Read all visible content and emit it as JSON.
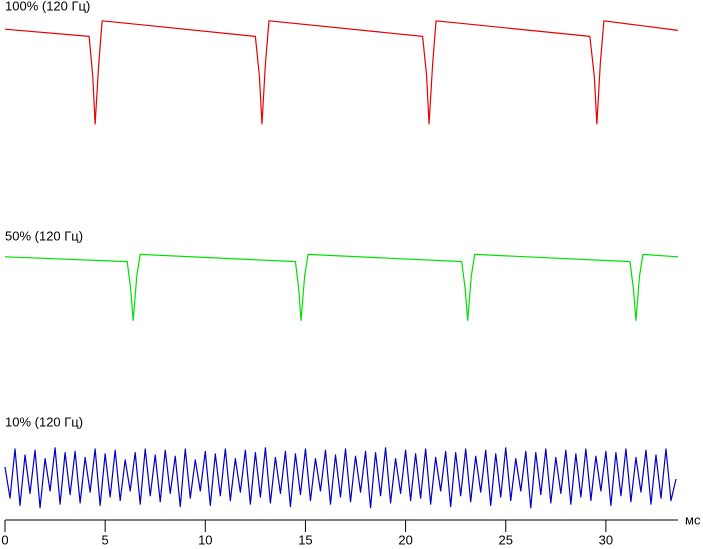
{
  "chart_data": {
    "type": "line",
    "x_label": "мс",
    "xlim": [
      0,
      33.6
    ],
    "xticks": [
      0,
      5,
      10,
      15,
      20,
      25,
      30
    ],
    "ylim": [
      0,
      100
    ],
    "series": [
      {
        "name": "100% (120 Гц)",
        "color": "#e60000",
        "x": [
          0,
          4.2,
          4.38,
          4.5,
          4.68,
          4.85,
          12.5,
          12.7,
          12.83,
          13.0,
          13.18,
          20.85,
          21.05,
          21.17,
          21.35,
          21.52,
          29.2,
          29.42,
          29.55,
          29.72,
          29.9,
          33.6
        ],
        "values": [
          84,
          78,
          45,
          5,
          55,
          91,
          78,
          45,
          5,
          55,
          91,
          78,
          45,
          5,
          55,
          91,
          78,
          45,
          5,
          55,
          91,
          83
        ]
      },
      {
        "name": "50% (120 Гц)",
        "color": "#00e000",
        "x": [
          0,
          6.1,
          6.27,
          6.4,
          6.58,
          6.75,
          14.5,
          14.66,
          14.78,
          14.96,
          15.13,
          22.8,
          22.97,
          23.1,
          23.28,
          23.45,
          31.2,
          31.37,
          31.5,
          31.68,
          31.85,
          33.6
        ],
        "values": [
          61,
          57,
          35,
          8,
          45,
          63,
          57,
          35,
          8,
          45,
          63,
          57,
          35,
          8,
          45,
          63,
          57,
          35,
          8,
          45,
          63,
          61
        ]
      },
      {
        "name": "10% (120 Гц)",
        "color": "#0000c8",
        "x": [
          0,
          0.25,
          0.5,
          0.75,
          1,
          1.25,
          1.5,
          1.75,
          2,
          2.25,
          2.5,
          2.75,
          3,
          3.25,
          3.5,
          3.75,
          4,
          4.25,
          4.5,
          4.75,
          5,
          5.25,
          5.5,
          5.75,
          6,
          6.25,
          6.5,
          6.75,
          7,
          7.25,
          7.5,
          7.75,
          8,
          8.25,
          8.5,
          8.75,
          9,
          9.25,
          9.5,
          9.75,
          10,
          10.25,
          10.5,
          10.75,
          11,
          11.25,
          11.5,
          11.75,
          12,
          12.25,
          12.5,
          12.75,
          13,
          13.25,
          13.5,
          13.75,
          14,
          14.25,
          14.5,
          14.75,
          15,
          15.25,
          15.5,
          15.75,
          16,
          16.25,
          16.5,
          16.75,
          17,
          17.25,
          17.5,
          17.75,
          18,
          18.25,
          18.5,
          18.75,
          19,
          19.25,
          19.5,
          19.75,
          20,
          20.25,
          20.5,
          20.75,
          21,
          21.25,
          21.5,
          21.75,
          22,
          22.25,
          22.5,
          22.75,
          23,
          23.25,
          23.5,
          23.75,
          24,
          24.25,
          24.5,
          24.75,
          25,
          25.25,
          25.5,
          25.75,
          26,
          26.25,
          26.5,
          26.75,
          27,
          27.25,
          27.5,
          27.75,
          28,
          28.25,
          28.5,
          28.75,
          29,
          29.25,
          29.5,
          29.75,
          30,
          30.25,
          30.5,
          30.75,
          31,
          31.25,
          31.5,
          31.75,
          32,
          32.25,
          32.5,
          32.75,
          33,
          33.25,
          33.5
        ],
        "values": [
          40,
          14,
          55,
          8,
          50,
          18,
          54,
          6,
          47,
          20,
          56,
          9,
          52,
          17,
          53,
          10,
          48,
          19,
          55,
          8,
          51,
          15,
          54,
          12,
          46,
          20,
          52,
          9,
          55,
          16,
          50,
          11,
          54,
          18,
          49,
          7,
          55,
          14,
          46,
          20,
          53,
          8,
          51,
          16,
          55,
          12,
          47,
          19,
          54,
          9,
          52,
          15,
          56,
          10,
          48,
          18,
          53,
          7,
          51,
          17,
          55,
          12,
          47,
          20,
          54,
          9,
          50,
          15,
          55,
          11,
          49,
          19,
          53,
          6,
          52,
          16,
          56,
          10,
          47,
          18,
          54,
          12,
          51,
          14,
          55,
          9,
          48,
          20,
          53,
          7,
          52,
          16,
          55,
          11,
          49,
          19,
          54,
          8,
          51,
          15,
          56,
          12,
          47,
          20,
          53,
          6,
          52,
          17,
          55,
          10,
          48,
          18,
          54,
          9,
          51,
          15,
          55,
          12,
          49,
          20,
          53,
          8,
          52,
          16,
          55,
          11,
          48,
          19,
          54,
          9,
          50,
          14,
          55,
          12,
          30
        ]
      }
    ]
  }
}
